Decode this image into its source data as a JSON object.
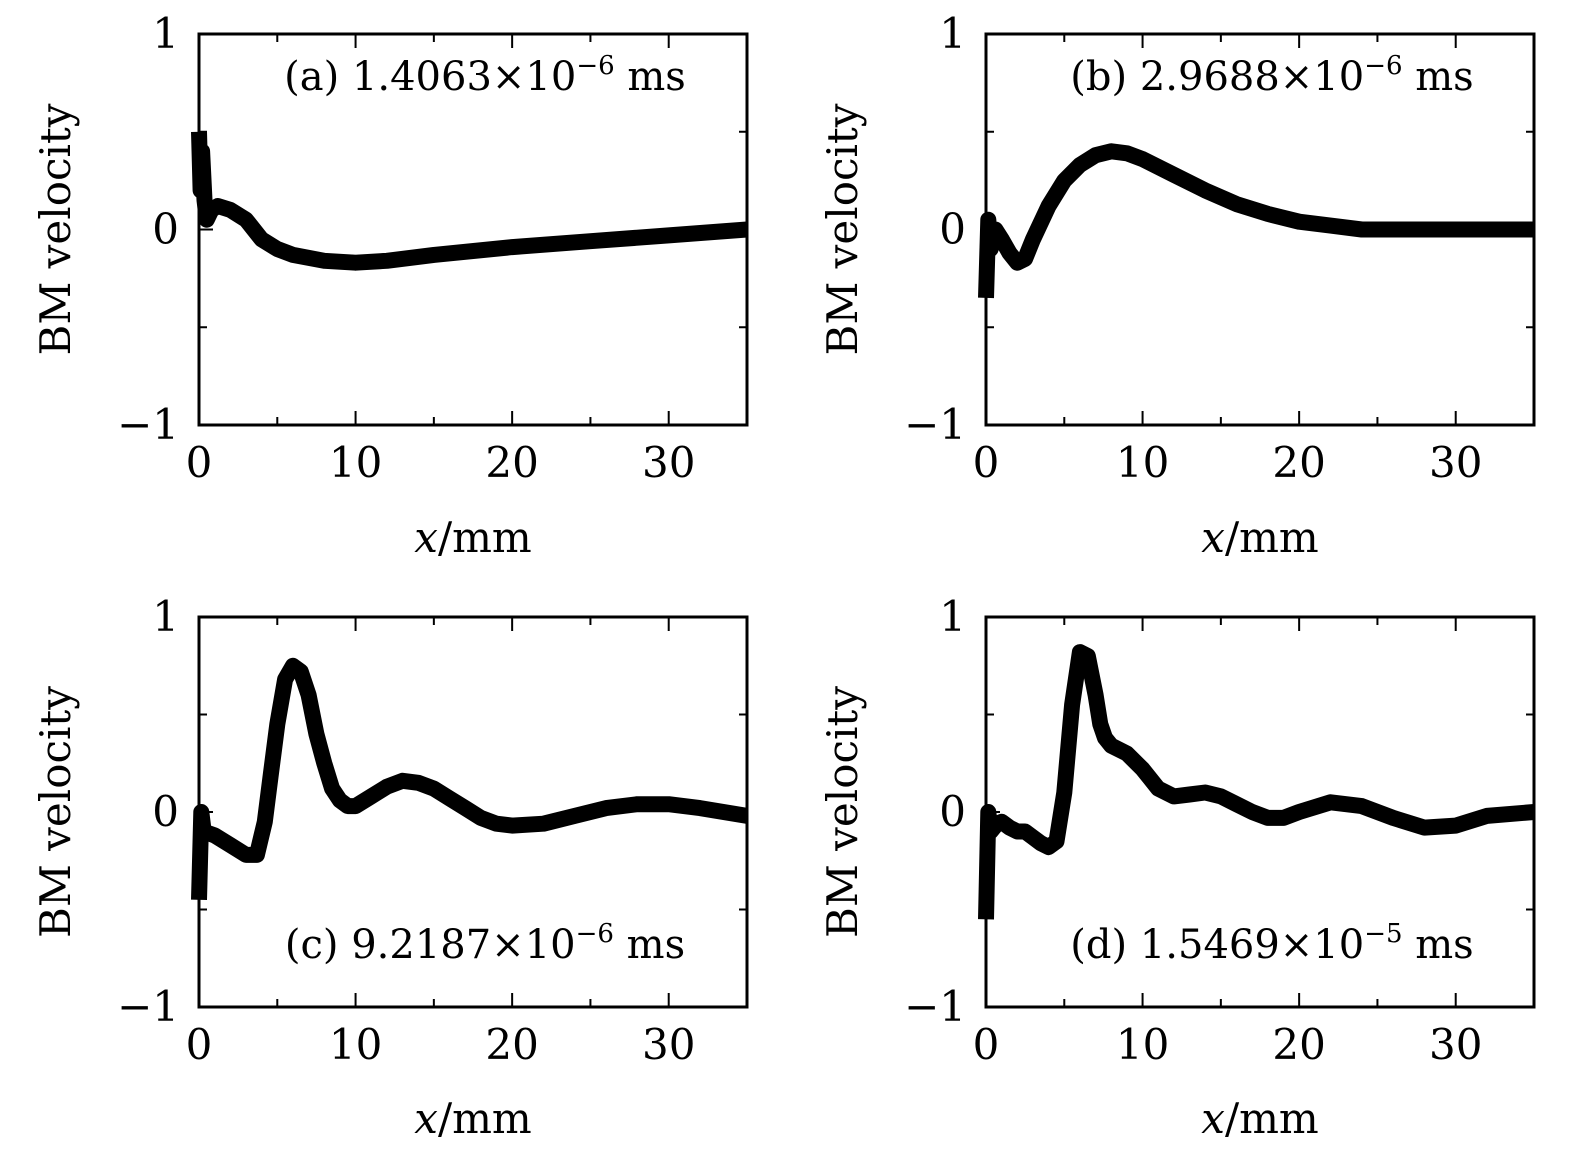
{
  "chart_data": [
    {
      "type": "line",
      "panel": "a",
      "annotation": {
        "prefix": "(a) 1.4063×10",
        "exponent": "−6",
        "suffix": " ms"
      },
      "xlabel": {
        "italic": "x",
        "rest": "/mm"
      },
      "ylabel": "BM velocity",
      "xlim": [
        0,
        35
      ],
      "ylim": [
        -1,
        1
      ],
      "xticks": [
        0,
        10,
        20,
        30
      ],
      "xtick_labels": [
        "0",
        "10",
        "20",
        "30"
      ],
      "yticks": [
        -1,
        0,
        1
      ],
      "ytick_labels": [
        "−1",
        "0",
        "1"
      ],
      "series": [
        {
          "x": [
            0,
            0.1,
            0.2,
            0.35,
            0.5,
            0.8,
            1.2,
            2,
            3,
            4,
            5,
            6,
            8,
            10,
            12,
            15,
            20,
            25,
            30,
            35
          ],
          "y": [
            0.5,
            0.2,
            0.4,
            0.15,
            0.05,
            0.1,
            0.12,
            0.1,
            0.05,
            -0.05,
            -0.1,
            -0.13,
            -0.16,
            -0.17,
            -0.16,
            -0.13,
            -0.09,
            -0.06,
            -0.03,
            0
          ]
        }
      ]
    },
    {
      "type": "line",
      "panel": "b",
      "annotation": {
        "prefix": "(b) 2.9688×10",
        "exponent": "−6",
        "suffix": " ms"
      },
      "xlabel": {
        "italic": "x",
        "rest": "/mm"
      },
      "ylabel": "BM velocity",
      "xlim": [
        0,
        35
      ],
      "ylim": [
        -1,
        1
      ],
      "xticks": [
        0,
        10,
        20,
        30
      ],
      "xtick_labels": [
        "0",
        "10",
        "20",
        "30"
      ],
      "yticks": [
        -1,
        0,
        1
      ],
      "ytick_labels": [
        "−1",
        "0",
        "1"
      ],
      "series": [
        {
          "x": [
            0,
            0.15,
            0.3,
            0.6,
            1,
            1.5,
            2,
            2.5,
            3,
            4,
            5,
            6,
            7,
            8,
            9,
            10,
            12,
            14,
            16,
            18,
            20,
            22,
            24,
            27,
            30,
            35
          ],
          "y": [
            -0.35,
            0.05,
            -0.1,
            0,
            -0.05,
            -0.12,
            -0.17,
            -0.15,
            -0.05,
            0.12,
            0.25,
            0.33,
            0.38,
            0.4,
            0.39,
            0.36,
            0.28,
            0.2,
            0.13,
            0.08,
            0.04,
            0.02,
            0,
            0,
            0,
            0
          ]
        }
      ]
    },
    {
      "type": "line",
      "panel": "c",
      "annotation": {
        "prefix": "(c) 9.2187×10",
        "exponent": "−6",
        "suffix": " ms"
      },
      "xlabel": {
        "italic": "x",
        "rest": "/mm"
      },
      "ylabel": "BM velocity",
      "xlim": [
        0,
        35
      ],
      "ylim": [
        -1,
        1
      ],
      "xticks": [
        0,
        10,
        20,
        30
      ],
      "xtick_labels": [
        "0",
        "10",
        "20",
        "30"
      ],
      "yticks": [
        -1,
        0,
        1
      ],
      "ytick_labels": [
        "−1",
        "0",
        "1"
      ],
      "series": [
        {
          "x": [
            0,
            0.15,
            0.3,
            1,
            2,
            3,
            3.7,
            4.2,
            4.6,
            5,
            5.5,
            6,
            6.5,
            7,
            7.5,
            8,
            8.5,
            9,
            9.5,
            10,
            11,
            12,
            13,
            14,
            15,
            16,
            17,
            18,
            19,
            20,
            22,
            24,
            26,
            28,
            30,
            32,
            35
          ],
          "y": [
            -0.45,
            0,
            -0.1,
            -0.12,
            -0.17,
            -0.22,
            -0.22,
            -0.05,
            0.2,
            0.45,
            0.68,
            0.75,
            0.72,
            0.6,
            0.4,
            0.25,
            0.12,
            0.06,
            0.03,
            0.03,
            0.08,
            0.13,
            0.16,
            0.15,
            0.12,
            0.07,
            0.02,
            -0.03,
            -0.06,
            -0.07,
            -0.06,
            -0.02,
            0.02,
            0.04,
            0.04,
            0.02,
            -0.02
          ]
        }
      ]
    },
    {
      "type": "line",
      "panel": "d",
      "annotation": {
        "prefix": "(d) 1.5469×10",
        "exponent": "−5",
        "suffix": " ms"
      },
      "xlabel": {
        "italic": "x",
        "rest": "/mm"
      },
      "ylabel": "BM velocity",
      "xlim": [
        0,
        35
      ],
      "ylim": [
        -1,
        1
      ],
      "xticks": [
        0,
        10,
        20,
        30
      ],
      "xtick_labels": [
        "0",
        "10",
        "20",
        "30"
      ],
      "yticks": [
        -1,
        0,
        1
      ],
      "ytick_labels": [
        "−1",
        "0",
        "1"
      ],
      "series": [
        {
          "x": [
            0,
            0.15,
            0.3,
            0.7,
            1,
            1.5,
            2,
            2.5,
            3,
            3.5,
            4,
            4.5,
            5,
            5.5,
            6,
            6.5,
            7,
            7.3,
            7.6,
            8,
            9,
            10,
            11,
            12,
            13,
            14,
            15,
            16,
            17,
            18,
            19,
            20,
            22,
            24,
            26,
            28,
            30,
            32,
            35
          ],
          "y": [
            -0.55,
            0,
            -0.1,
            -0.06,
            -0.05,
            -0.08,
            -0.1,
            -0.1,
            -0.13,
            -0.16,
            -0.18,
            -0.15,
            0.1,
            0.55,
            0.82,
            0.8,
            0.6,
            0.45,
            0.38,
            0.34,
            0.3,
            0.22,
            0.12,
            0.08,
            0.09,
            0.1,
            0.08,
            0.04,
            0,
            -0.03,
            -0.03,
            0,
            0.05,
            0.03,
            -0.03,
            -0.08,
            -0.07,
            -0.02,
            0
          ]
        }
      ]
    }
  ]
}
